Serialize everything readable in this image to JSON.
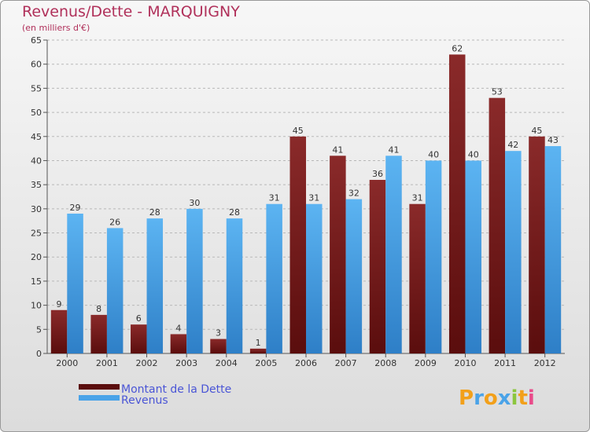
{
  "chart_data": {
    "type": "bar",
    "title": "Revenus/Dette - MARQUIGNY",
    "subtitle": "(en milliers d'€)",
    "categories": [
      "2000",
      "2001",
      "2002",
      "2003",
      "2004",
      "2005",
      "2006",
      "2007",
      "2008",
      "2009",
      "2010",
      "2011",
      "2012"
    ],
    "series": [
      {
        "name": "Montant de la Dette",
        "color": "#7a1c1c",
        "values": [
          9,
          8,
          6,
          4,
          3,
          1,
          45,
          41,
          36,
          31,
          62,
          53,
          45
        ]
      },
      {
        "name": "Revenus",
        "color": "#4aa3e8",
        "values": [
          29,
          26,
          28,
          30,
          28,
          31,
          31,
          32,
          41,
          40,
          40,
          42,
          43
        ]
      }
    ],
    "ylim": [
      0,
      65
    ],
    "yticks": [
      0,
      5,
      10,
      15,
      20,
      25,
      30,
      35,
      40,
      45,
      50,
      55,
      60,
      65
    ],
    "grid": true,
    "legend": "bottom-left"
  },
  "logo": {
    "text": "Proxiti"
  }
}
